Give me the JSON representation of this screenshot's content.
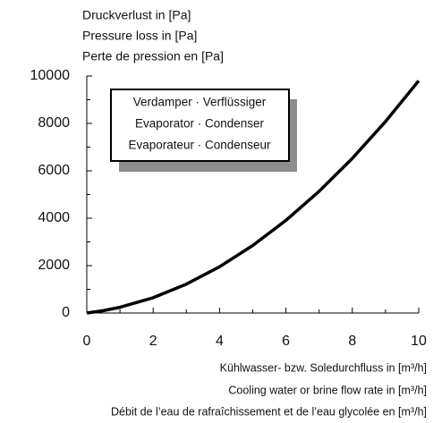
{
  "chart_data": {
    "type": "line",
    "ylabel": [
      "Druckverlust in [Pa]",
      "Pressure loss in [Pa]",
      "Perte de pression en [Pa]"
    ],
    "xlabel": [
      "Kühlwasser- bzw. Soledurchfluss in [m³/h]",
      "Cooling water or brine flow rate in [m³/h]",
      "Débit de l’eau de rafraîchissement et de l’eau glycolée en [m³/h]"
    ],
    "annotation": [
      "Verdamper · Verflüssiger",
      "Evaporator · Condenser",
      "Evaporateur · Condenseur"
    ],
    "x": [
      0,
      0.5,
      1,
      2,
      3,
      4,
      5,
      6,
      7,
      8,
      9,
      10
    ],
    "series": [
      {
        "color": "#000000",
        "values": [
          0,
          100,
          241,
          646,
          1217,
          1950,
          2848,
          3910,
          5137,
          6526,
          8080,
          9800
        ]
      }
    ],
    "xlim": [
      0,
      10
    ],
    "xticks": [
      0,
      2,
      4,
      6,
      8,
      10
    ],
    "xminor_ticks": [
      1,
      3,
      5,
      7,
      9
    ],
    "ylim": [
      0,
      10000
    ],
    "yticks": [
      0,
      2000,
      4000,
      6000,
      8000,
      10000
    ],
    "yminor_ticks": [
      1000,
      3000,
      5000,
      7000,
      9000
    ],
    "grid": false
  }
}
